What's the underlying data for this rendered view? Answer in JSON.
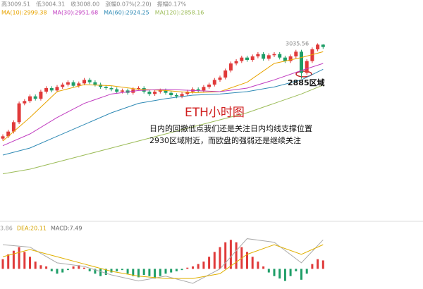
{
  "chart_data": {
    "type": "candlestick",
    "header": [
      "高3009.51",
      "低3004.31",
      "收3008.00",
      "涨幅0.07%(2.20)",
      "振幅0.17%"
    ],
    "ylim": [
      2320,
      3160
    ],
    "open": [
      2630,
      2640,
      2660,
      2700,
      2780,
      2790,
      2810,
      2800,
      2830,
      2845,
      2835,
      2850,
      2860,
      2870,
      2855,
      2865,
      2880,
      2870,
      2860,
      2850,
      2845,
      2840,
      2830,
      2835,
      2825,
      2840,
      2845,
      2830,
      2820,
      2830,
      2835,
      2825,
      2815,
      2810,
      2820,
      2830,
      2840,
      2835,
      2850,
      2860,
      2880,
      2890,
      2920,
      2950,
      2960,
      2975,
      2965,
      2980,
      2990,
      2970,
      2985,
      2990,
      2975,
      2960,
      2980,
      3000,
      2910,
      2960,
      3010,
      3030
    ],
    "high": [
      2648,
      2668,
      2708,
      2788,
      2798,
      2818,
      2818,
      2838,
      2853,
      2853,
      2858,
      2868,
      2878,
      2878,
      2873,
      2888,
      2888,
      2878,
      2868,
      2858,
      2853,
      2848,
      2843,
      2843,
      2848,
      2853,
      2853,
      2838,
      2838,
      2843,
      2843,
      2833,
      2823,
      2828,
      2838,
      2848,
      2848,
      2858,
      2868,
      2888,
      2898,
      2928,
      2958,
      2968,
      2983,
      2983,
      2988,
      2998,
      2998,
      2993,
      2998,
      2998,
      2983,
      2988,
      3008,
      3008,
      2968,
      3018,
      3035.56,
      3032
    ],
    "low": [
      2622,
      2632,
      2652,
      2692,
      2772,
      2782,
      2792,
      2792,
      2822,
      2827,
      2827,
      2842,
      2852,
      2847,
      2847,
      2857,
      2862,
      2852,
      2842,
      2837,
      2832,
      2822,
      2822,
      2817,
      2817,
      2837,
      2822,
      2812,
      2812,
      2822,
      2817,
      2807,
      2802,
      2802,
      2812,
      2822,
      2827,
      2827,
      2842,
      2852,
      2872,
      2882,
      2912,
      2942,
      2952,
      2957,
      2957,
      2972,
      2962,
      2962,
      2977,
      2967,
      2952,
      2952,
      2972,
      2885,
      2902,
      2952,
      3002,
      3012
    ],
    "close": [
      2640,
      2660,
      2700,
      2780,
      2790,
      2810,
      2800,
      2830,
      2845,
      2835,
      2850,
      2860,
      2870,
      2855,
      2865,
      2880,
      2870,
      2860,
      2850,
      2845,
      2840,
      2830,
      2835,
      2825,
      2840,
      2845,
      2830,
      2820,
      2830,
      2835,
      2825,
      2815,
      2810,
      2820,
      2830,
      2840,
      2835,
      2850,
      2860,
      2880,
      2890,
      2920,
      2950,
      2960,
      2975,
      2965,
      2980,
      2990,
      2970,
      2985,
      2990,
      2975,
      2960,
      2980,
      3000,
      2910,
      2960,
      3010,
      3030,
      3020
    ],
    "up_color": "#e03a3a",
    "down_color": "#1f9e68",
    "ma_x": [
      0,
      5,
      10,
      15,
      20,
      25,
      30,
      35,
      40,
      45,
      50,
      55,
      59
    ],
    "ma": [
      {
        "name": "MA(10):2999.38",
        "color": "#e8a400",
        "values": [
          2620,
          2720,
          2830,
          2860,
          2855,
          2840,
          2835,
          2825,
          2830,
          2870,
          2950,
          2975,
          3000
        ]
      },
      {
        "name": "MA(30):2951.68",
        "color": "#c03cc0",
        "values": [
          2600,
          2650,
          2720,
          2780,
          2820,
          2835,
          2840,
          2835,
          2830,
          2845,
          2880,
          2920,
          2950
        ]
      },
      {
        "name": "MA(60):2924.25",
        "color": "#2f8ab5",
        "values": [
          2560,
          2590,
          2640,
          2690,
          2740,
          2780,
          2800,
          2815,
          2820,
          2830,
          2850,
          2880,
          2925
        ]
      },
      {
        "name": "MA(120):2858.16",
        "color": "#9cbc58",
        "values": [
          2480,
          2500,
          2530,
          2560,
          2590,
          2620,
          2650,
          2680,
          2710,
          2740,
          2780,
          2820,
          2858
        ]
      }
    ],
    "annotations": {
      "peak": "3035.56",
      "zone": "2885区域",
      "title": "ETH小时图",
      "lines": [
        "日内的回撤低点我们还是关注日内均线支撑位置",
        "2930区域附近，而欧盘的强弱还是继续关注"
      ]
    },
    "macd_panel": {
      "ylim": [
        -12,
        30
      ],
      "labels": [
        {
          "name": "3.86",
          "color": "#999999"
        },
        {
          "name": "DEA:20.11",
          "color": "#d6a400"
        },
        {
          "name": "MACD:7.49",
          "color": "#666666"
        }
      ],
      "histogram": [
        8,
        12,
        15,
        18,
        14,
        10,
        6,
        3,
        2,
        -2,
        -4,
        -3,
        -1,
        2,
        3,
        1,
        -2,
        -4,
        -6,
        -5,
        -3,
        -2,
        -1,
        -4,
        -6,
        -7,
        -5,
        -6,
        -8,
        -6,
        -4,
        -3,
        -2,
        -1,
        1,
        2,
        4,
        6,
        10,
        14,
        18,
        22,
        24,
        22,
        18,
        14,
        10,
        6,
        2,
        -3,
        -6,
        -8,
        -10,
        -6,
        -2,
        -9,
        -4,
        4,
        8,
        7
      ],
      "dif": {
        "color": "#aaaaaa",
        "values": [
          20,
          18,
          5,
          2,
          -5,
          -10,
          -6,
          -12,
          0,
          25,
          22,
          5,
          24
        ]
      },
      "dea": {
        "color": "#e0b000",
        "values": [
          10,
          16,
          10,
          4,
          -2,
          -6,
          -8,
          -8,
          -4,
          12,
          20,
          12,
          20
        ]
      }
    }
  }
}
